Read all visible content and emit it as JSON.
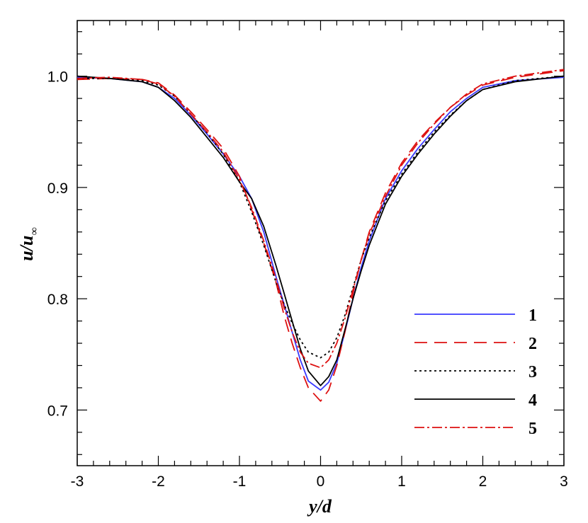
{
  "chart_data": {
    "type": "line",
    "title": "",
    "xlabel": "y/d",
    "ylabel_main": "u/u",
    "ylabel_sub": "∞",
    "xlim": [
      -3,
      3
    ],
    "ylim": [
      0.65,
      1.05
    ],
    "xticks": [
      -3,
      -2,
      -1,
      0,
      1,
      2,
      3
    ],
    "xtick_labels": [
      "-3",
      "-2",
      "-1",
      "0",
      "1",
      "2",
      "3"
    ],
    "yticks": [
      0.7,
      0.8,
      0.9,
      1.0
    ],
    "ytick_labels": [
      "0.7",
      "0.8",
      "0.9",
      "1.0"
    ],
    "grid": false,
    "legend_position": "lower-right",
    "series": [
      {
        "name": "1",
        "color": "#3a3aff",
        "dash": "solid",
        "x": [
          -3,
          -2.6,
          -2.2,
          -2.0,
          -1.8,
          -1.6,
          -1.4,
          -1.2,
          -1.0,
          -0.85,
          -0.7,
          -0.55,
          -0.45,
          -0.35,
          -0.25,
          -0.15,
          0.0,
          0.1,
          0.2,
          0.3,
          0.4,
          0.5,
          0.6,
          0.8,
          1.0,
          1.2,
          1.4,
          1.6,
          1.8,
          2.0,
          2.4,
          3.0
        ],
        "y": [
          0.999,
          0.998,
          0.995,
          0.99,
          0.98,
          0.965,
          0.948,
          0.93,
          0.91,
          0.89,
          0.86,
          0.82,
          0.795,
          0.77,
          0.745,
          0.726,
          0.718,
          0.725,
          0.742,
          0.77,
          0.8,
          0.828,
          0.852,
          0.89,
          0.915,
          0.935,
          0.952,
          0.968,
          0.98,
          0.99,
          0.996,
          0.999
        ]
      },
      {
        "name": "2",
        "color": "#dd1111",
        "dash": "18 10",
        "x": [
          -3,
          -2.6,
          -2.2,
          -2.0,
          -1.8,
          -1.6,
          -1.4,
          -1.2,
          -1.0,
          -0.85,
          -0.7,
          -0.55,
          -0.45,
          -0.35,
          -0.25,
          -0.15,
          0.0,
          0.1,
          0.2,
          0.3,
          0.4,
          0.5,
          0.6,
          0.8,
          1.0,
          1.2,
          1.4,
          1.6,
          1.8,
          2.0,
          2.4,
          3.0
        ],
        "y": [
          0.997,
          0.998,
          0.997,
          0.994,
          0.983,
          0.968,
          0.952,
          0.935,
          0.91,
          0.88,
          0.85,
          0.815,
          0.785,
          0.76,
          0.738,
          0.72,
          0.708,
          0.718,
          0.74,
          0.77,
          0.805,
          0.835,
          0.86,
          0.895,
          0.922,
          0.942,
          0.958,
          0.972,
          0.983,
          0.992,
          0.999,
          1.005
        ]
      },
      {
        "name": "3",
        "color": "#000000",
        "dash": "3 4",
        "x": [
          -3,
          -2.6,
          -2.2,
          -2.0,
          -1.8,
          -1.6,
          -1.4,
          -1.2,
          -1.0,
          -0.85,
          -0.7,
          -0.55,
          -0.45,
          -0.35,
          -0.25,
          -0.15,
          0.0,
          0.1,
          0.2,
          0.3,
          0.4,
          0.5,
          0.6,
          0.8,
          1.0,
          1.2,
          1.4,
          1.6,
          1.8,
          2.0,
          2.4,
          3.0
        ],
        "y": [
          0.998,
          0.998,
          0.996,
          0.992,
          0.982,
          0.966,
          0.949,
          0.93,
          0.905,
          0.878,
          0.848,
          0.815,
          0.795,
          0.778,
          0.763,
          0.752,
          0.747,
          0.752,
          0.765,
          0.785,
          0.81,
          0.835,
          0.855,
          0.888,
          0.912,
          0.932,
          0.95,
          0.965,
          0.978,
          0.988,
          0.996,
          1.0
        ]
      },
      {
        "name": "4",
        "color": "#000000",
        "dash": "solid",
        "x": [
          -3,
          -2.6,
          -2.2,
          -2.0,
          -1.8,
          -1.6,
          -1.4,
          -1.2,
          -1.0,
          -0.85,
          -0.7,
          -0.55,
          -0.45,
          -0.35,
          -0.25,
          -0.15,
          0.0,
          0.1,
          0.2,
          0.3,
          0.4,
          0.5,
          0.6,
          0.8,
          1.0,
          1.2,
          1.4,
          1.6,
          1.8,
          2.0,
          2.4,
          3.0
        ],
        "y": [
          1.0,
          0.998,
          0.995,
          0.99,
          0.978,
          0.963,
          0.945,
          0.927,
          0.905,
          0.89,
          0.865,
          0.83,
          0.805,
          0.78,
          0.755,
          0.735,
          0.722,
          0.73,
          0.745,
          0.772,
          0.8,
          0.825,
          0.848,
          0.885,
          0.91,
          0.93,
          0.948,
          0.964,
          0.978,
          0.988,
          0.995,
          1.0
        ]
      },
      {
        "name": "5",
        "color": "#dd1111",
        "dash": "14 4 3 4",
        "x": [
          -3,
          -2.6,
          -2.2,
          -2.0,
          -1.8,
          -1.6,
          -1.4,
          -1.2,
          -1.0,
          -0.85,
          -0.7,
          -0.55,
          -0.45,
          -0.35,
          -0.25,
          -0.15,
          0.0,
          0.1,
          0.2,
          0.3,
          0.4,
          0.5,
          0.6,
          0.8,
          1.0,
          1.2,
          1.4,
          1.6,
          1.8,
          2.0,
          2.4,
          3.0
        ],
        "y": [
          0.998,
          0.999,
          0.997,
          0.993,
          0.982,
          0.966,
          0.95,
          0.932,
          0.907,
          0.882,
          0.852,
          0.818,
          0.792,
          0.77,
          0.752,
          0.742,
          0.738,
          0.745,
          0.76,
          0.782,
          0.808,
          0.835,
          0.858,
          0.892,
          0.92,
          0.94,
          0.957,
          0.972,
          0.984,
          0.993,
          1.0,
          1.006
        ]
      }
    ]
  }
}
